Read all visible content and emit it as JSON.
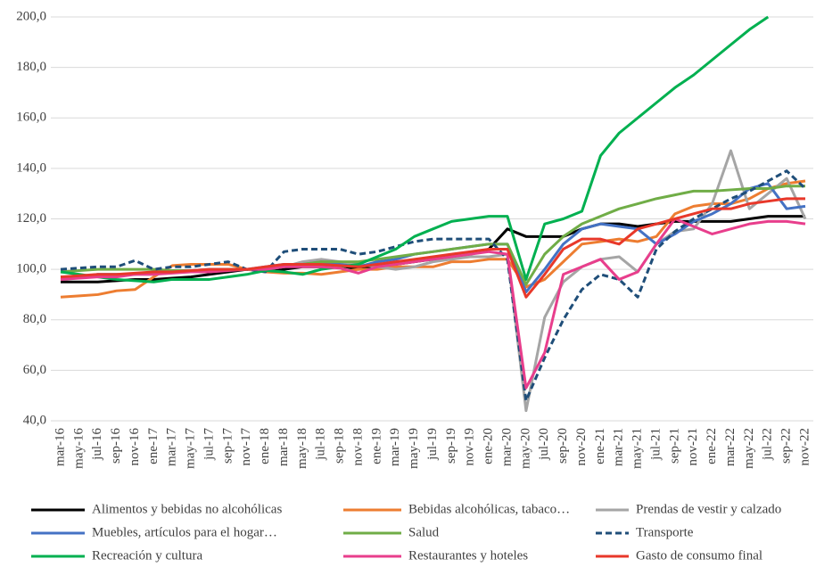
{
  "chart_data": {
    "type": "line",
    "categories": [
      "mar-16",
      "may-16",
      "jul-16",
      "sep-16",
      "nov-16",
      "ene-17",
      "mar-17",
      "may-17",
      "jul-17",
      "sep-17",
      "nov-17",
      "ene-18",
      "mar-18",
      "may-18",
      "jul-18",
      "sep-18",
      "nov-18",
      "ene-19",
      "mar-19",
      "may-19",
      "jul-19",
      "sep-19",
      "nov-19",
      "ene-20",
      "mar-20",
      "may-20",
      "jul-20",
      "sep-20",
      "nov-20",
      "ene-21",
      "mar-21",
      "may-21",
      "jul-21",
      "sep-21",
      "nov-21",
      "ene-22",
      "mar-22",
      "may-22",
      "jul-22",
      "sep-22",
      "nov-22"
    ],
    "ylim": [
      40,
      200
    ],
    "yticks": [
      {
        "value": 40,
        "label": "40,0"
      },
      {
        "value": 60,
        "label": "60,0"
      },
      {
        "value": 80,
        "label": "80,0"
      },
      {
        "value": 100,
        "label": "100,0"
      },
      {
        "value": 120,
        "label": "120,0"
      },
      {
        "value": 140,
        "label": "140,0"
      },
      {
        "value": 160,
        "label": "160,0"
      },
      {
        "value": 180,
        "label": "180,0"
      },
      {
        "value": 200,
        "label": "200,0"
      }
    ],
    "grid": true,
    "series": [
      {
        "name": "Alimentos y bebidas no alcohólicas",
        "color": "#000000",
        "values": [
          95,
          95,
          95,
          95.5,
          96,
          96,
          96.5,
          97,
          98,
          99,
          100,
          100,
          100,
          101,
          101,
          101.5,
          100,
          101,
          102,
          103,
          104,
          105,
          106,
          108,
          116,
          113,
          113,
          113,
          116,
          118,
          118,
          117,
          118,
          119,
          119,
          119,
          119,
          120,
          121,
          121,
          121
        ]
      },
      {
        "name": "Bebidas alcohólicas, tabaco…",
        "color": "#ed7d31",
        "values": [
          89,
          89.5,
          90,
          91.5,
          92,
          97,
          101.5,
          102,
          102,
          102,
          100,
          99,
          98.5,
          98.5,
          98,
          99,
          100,
          100,
          101,
          101,
          101,
          103,
          103,
          104,
          104,
          93,
          96,
          103,
          110,
          111,
          112,
          111,
          113,
          122,
          125,
          126,
          126,
          128,
          132,
          134,
          135
        ]
      },
      {
        "name": "Prendas de vestir y calzado",
        "color": "#a5a5a5",
        "values": [
          97,
          97,
          98,
          98,
          98,
          98,
          99,
          99,
          99,
          100,
          100,
          100,
          101,
          103,
          104,
          103,
          102,
          101,
          100,
          101,
          103,
          104,
          105,
          105,
          106,
          44,
          81,
          95,
          101,
          104,
          105,
          99,
          110,
          115,
          116,
          126,
          147,
          124,
          130,
          136,
          120
        ]
      },
      {
        "name": "Muebles, artículos para el hogar…",
        "color": "#4472c4",
        "values": [
          97,
          97,
          98,
          98,
          98,
          99,
          99,
          99.5,
          100,
          100,
          100,
          101,
          102,
          102,
          103,
          102,
          101,
          103,
          104,
          106,
          107,
          108,
          109,
          110,
          110,
          91,
          100,
          110,
          116,
          118,
          117,
          116,
          110,
          114,
          119,
          122,
          126,
          132,
          134,
          124,
          125
        ]
      },
      {
        "name": "Salud",
        "color": "#70ad47",
        "values": [
          99,
          99.5,
          100,
          100,
          100,
          100,
          99.5,
          99.5,
          99.5,
          100,
          100,
          100,
          101,
          102,
          103,
          103,
          103,
          104,
          105,
          106,
          107,
          108,
          109,
          110,
          110,
          94,
          106,
          113,
          118,
          121,
          124,
          126,
          128,
          129.5,
          131,
          131,
          131.5,
          132,
          132,
          133,
          133
        ]
      },
      {
        "name": "Transporte",
        "color": "#1f4e79",
        "dashed": true,
        "values": [
          100,
          100.5,
          101,
          101,
          103.5,
          100,
          101,
          101,
          102,
          103,
          100,
          99,
          107,
          108,
          108,
          108,
          106,
          107,
          109,
          111,
          112,
          112,
          112,
          112,
          104,
          48,
          65,
          80,
          92,
          98,
          96,
          89,
          108,
          115,
          120,
          124,
          128,
          131,
          135,
          139,
          132
        ]
      },
      {
        "name": "Recreación y cultura",
        "color": "#00b050",
        "values": [
          99,
          98,
          97,
          96,
          95.5,
          95,
          96,
          96,
          96,
          97,
          98,
          99.5,
          99,
          98,
          100,
          101,
          102,
          105,
          108,
          113,
          116,
          119,
          120,
          121,
          121,
          96,
          118,
          120,
          123,
          145,
          154,
          160,
          166,
          172,
          177,
          183,
          189,
          195,
          200,
          null,
          null
        ]
      },
      {
        "name": "Restaurantes y hoteles",
        "color": "#e83e8c",
        "values": [
          96,
          96.5,
          97,
          97,
          98,
          98,
          98.5,
          99,
          99,
          99.5,
          100,
          100,
          101,
          101,
          101,
          100.5,
          98.5,
          101,
          102,
          103,
          104,
          105,
          106,
          107,
          106,
          53,
          67,
          98,
          101,
          104,
          96,
          99,
          110,
          120,
          117,
          114,
          116,
          118,
          119,
          119,
          118
        ]
      },
      {
        "name": "Gasto de consumo final",
        "color": "#e8382a",
        "values": [
          97,
          97.5,
          98,
          98,
          98.5,
          99,
          99,
          99.5,
          100,
          100,
          100,
          101,
          102,
          102,
          102,
          101.5,
          101,
          102,
          103,
          104,
          105,
          106,
          107,
          108,
          108,
          89,
          98,
          108,
          112,
          112,
          110,
          116,
          118,
          120,
          122,
          124,
          124,
          126,
          127,
          128,
          128
        ]
      }
    ]
  }
}
